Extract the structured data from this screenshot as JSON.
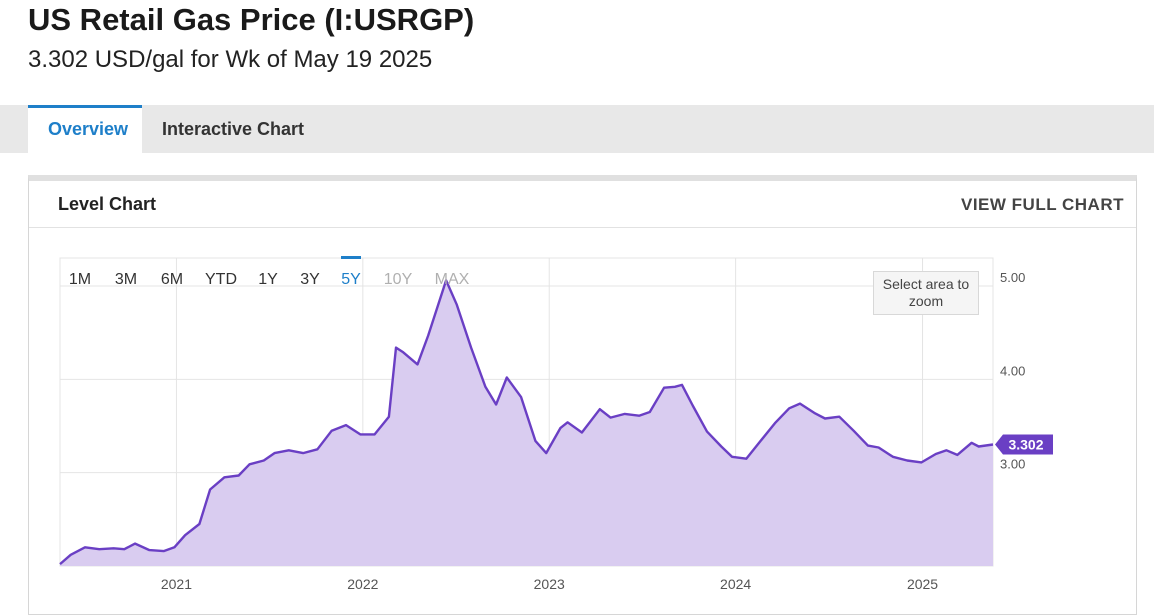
{
  "header": {
    "title": "US Retail Gas Price (I:USRGP)",
    "subtitle": "3.302 USD/gal for Wk of May 19 2025"
  },
  "tabs": [
    {
      "label": "Overview",
      "active": true
    },
    {
      "label": "Interactive Chart",
      "active": false
    }
  ],
  "panel": {
    "title": "Level Chart",
    "view_full_label": "VIEW FULL CHART"
  },
  "range_buttons": [
    {
      "label": "1M",
      "state": "enabled"
    },
    {
      "label": "3M",
      "state": "enabled"
    },
    {
      "label": "6M",
      "state": "enabled"
    },
    {
      "label": "YTD",
      "state": "enabled"
    },
    {
      "label": "1Y",
      "state": "enabled"
    },
    {
      "label": "3Y",
      "state": "enabled"
    },
    {
      "label": "5Y",
      "state": "active"
    },
    {
      "label": "10Y",
      "state": "disabled"
    },
    {
      "label": "MAX",
      "state": "disabled"
    }
  ],
  "zoom_hint": "Select area to zoom",
  "colors": {
    "accent": "#1e7fc9",
    "line": "#6a3fc4",
    "fill": "#d9ccf0",
    "badge": "#6a3fc4"
  },
  "chart_data": {
    "type": "area",
    "ylim": [
      2.0,
      5.3
    ],
    "yticks": [
      "5.00",
      "4.00",
      "3.00"
    ],
    "xticks": [
      "2021",
      "2022",
      "2023",
      "2024",
      "2025"
    ],
    "last_value_label": "3.302",
    "series": [
      {
        "values": [
          [
            "2020-05-18",
            2.02
          ],
          [
            "2020-06-08",
            2.12
          ],
          [
            "2020-07-06",
            2.2
          ],
          [
            "2020-08-03",
            2.18
          ],
          [
            "2020-08-31",
            2.19
          ],
          [
            "2020-09-21",
            2.18
          ],
          [
            "2020-10-12",
            2.24
          ],
          [
            "2020-11-09",
            2.17
          ],
          [
            "2020-12-07",
            2.16
          ],
          [
            "2020-12-28",
            2.2
          ],
          [
            "2021-01-18",
            2.33
          ],
          [
            "2021-02-15",
            2.45
          ],
          [
            "2021-03-08",
            2.82
          ],
          [
            "2021-04-05",
            2.95
          ],
          [
            "2021-05-03",
            2.97
          ],
          [
            "2021-05-24",
            3.09
          ],
          [
            "2021-06-21",
            3.13
          ],
          [
            "2021-07-12",
            3.21
          ],
          [
            "2021-08-09",
            3.24
          ],
          [
            "2021-09-06",
            3.21
          ],
          [
            "2021-10-04",
            3.25
          ],
          [
            "2021-11-01",
            3.45
          ],
          [
            "2021-11-29",
            3.51
          ],
          [
            "2021-12-27",
            3.41
          ],
          [
            "2022-01-24",
            3.41
          ],
          [
            "2022-02-21",
            3.6
          ],
          [
            "2022-03-07",
            4.34
          ],
          [
            "2022-03-21",
            4.29
          ],
          [
            "2022-04-18",
            4.16
          ],
          [
            "2022-05-09",
            4.47
          ],
          [
            "2022-06-13",
            5.06
          ],
          [
            "2022-07-04",
            4.8
          ],
          [
            "2022-08-01",
            4.34
          ],
          [
            "2022-08-29",
            3.92
          ],
          [
            "2022-09-19",
            3.73
          ],
          [
            "2022-10-10",
            4.02
          ],
          [
            "2022-11-07",
            3.81
          ],
          [
            "2022-12-05",
            3.34
          ],
          [
            "2022-12-26",
            3.21
          ],
          [
            "2023-01-23",
            3.48
          ],
          [
            "2023-02-06",
            3.54
          ],
          [
            "2023-03-06",
            3.43
          ],
          [
            "2023-04-10",
            3.68
          ],
          [
            "2023-05-01",
            3.59
          ],
          [
            "2023-05-29",
            3.63
          ],
          [
            "2023-06-26",
            3.61
          ],
          [
            "2023-07-17",
            3.65
          ],
          [
            "2023-08-14",
            3.91
          ],
          [
            "2023-09-04",
            3.92
          ],
          [
            "2023-09-18",
            3.94
          ],
          [
            "2023-10-09",
            3.72
          ],
          [
            "2023-11-06",
            3.44
          ],
          [
            "2023-12-04",
            3.28
          ],
          [
            "2023-12-25",
            3.17
          ],
          [
            "2024-01-22",
            3.15
          ],
          [
            "2024-02-19",
            3.34
          ],
          [
            "2024-03-18",
            3.53
          ],
          [
            "2024-04-15",
            3.69
          ],
          [
            "2024-05-06",
            3.74
          ],
          [
            "2024-06-03",
            3.64
          ],
          [
            "2024-06-24",
            3.58
          ],
          [
            "2024-07-22",
            3.6
          ],
          [
            "2024-08-19",
            3.45
          ],
          [
            "2024-09-16",
            3.29
          ],
          [
            "2024-10-07",
            3.27
          ],
          [
            "2024-11-04",
            3.17
          ],
          [
            "2024-12-02",
            3.13
          ],
          [
            "2024-12-30",
            3.11
          ],
          [
            "2025-01-27",
            3.2
          ],
          [
            "2025-02-17",
            3.24
          ],
          [
            "2025-03-10",
            3.19
          ],
          [
            "2025-04-07",
            3.32
          ],
          [
            "2025-04-21",
            3.28
          ],
          [
            "2025-05-19",
            3.302
          ]
        ]
      }
    ]
  }
}
